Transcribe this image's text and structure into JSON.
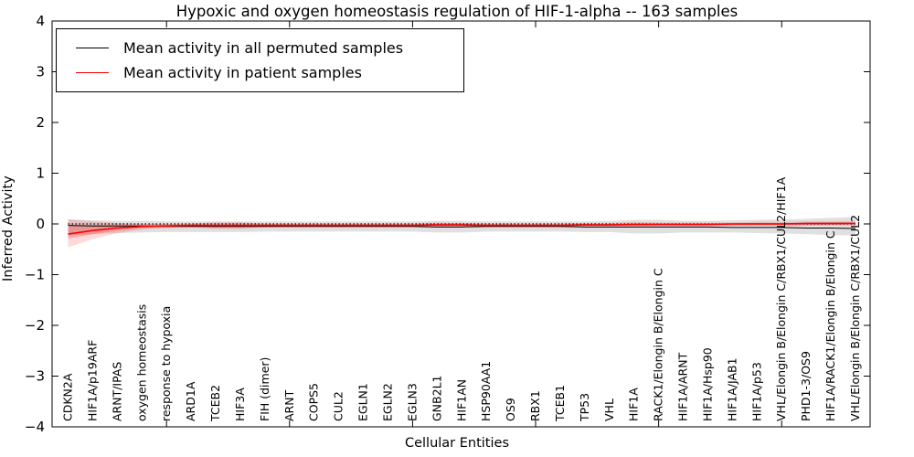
{
  "figure": {
    "title": "Hypoxic and oxygen homeostasis regulation of HIF-1-alpha -- 163 samples",
    "xlabel": "Cellular Entities",
    "ylabel": "Inferred Activity"
  },
  "chart_data": {
    "type": "line",
    "title": "Hypoxic and oxygen homeostasis regulation of HIF-1-alpha -- 163 samples",
    "xlabel": "Cellular Entities",
    "ylabel": "Inferred Activity",
    "ylim": [
      -4,
      4
    ],
    "yticks": [
      -4,
      -3,
      -2,
      -1,
      0,
      1,
      2,
      3,
      4
    ],
    "xtick_positions": [
      5,
      10,
      15,
      20,
      25,
      30
    ],
    "grid": false,
    "legend_position": "upper left",
    "zero_line_style": "dotted",
    "categories": [
      "CDKN2A",
      "HIF1A/p19ARF",
      "ARNT/IPAS",
      "oxygen homeostasis",
      "response to hypoxia",
      "ARD1A",
      "TCEB2",
      "HIF3A",
      "FIH (dimer)",
      "ARNT",
      "COPS5",
      "CUL2",
      "EGLN1",
      "EGLN2",
      "EGLN3",
      "GNB2L1",
      "HIF1AN",
      "HSP90AA1",
      "OS9",
      "RBX1",
      "TCEB1",
      "TP53",
      "VHL",
      "HIF1A",
      "RACK1/Elongin B/Elongin C",
      "HIF1A/ARNT",
      "HIF1A/Hsp90",
      "HIF1A/JAB1",
      "HIF1A/p53",
      "VHL/Elongin B/Elongin C/RBX1/CUL2/HIF1A",
      "PHD1-3/OS9",
      "HIF1A/RACK1/Elongin B/Elongin C",
      "VHL/Elongin B/Elongin C/RBX1/CUL2"
    ],
    "series": [
      {
        "name": "Mean activity in all permuted samples",
        "color": "#000000",
        "band_color": "rgba(0,0,0,0.12)",
        "values": [
          -0.03,
          -0.04,
          -0.04,
          -0.04,
          -0.05,
          -0.05,
          -0.05,
          -0.05,
          -0.05,
          -0.05,
          -0.05,
          -0.05,
          -0.05,
          -0.05,
          -0.05,
          -0.06,
          -0.06,
          -0.05,
          -0.05,
          -0.05,
          -0.05,
          -0.06,
          -0.06,
          -0.06,
          -0.06,
          -0.06,
          -0.06,
          -0.07,
          -0.07,
          -0.07,
          -0.08,
          -0.08,
          -0.09
        ],
        "band_upper": [
          0.09,
          0.07,
          0.06,
          0.06,
          0.05,
          0.05,
          0.05,
          0.05,
          0.05,
          0.05,
          0.05,
          0.05,
          0.05,
          0.05,
          0.05,
          0.06,
          0.06,
          0.05,
          0.05,
          0.05,
          0.05,
          0.05,
          0.06,
          0.08,
          0.08,
          0.06,
          0.06,
          0.07,
          0.08,
          0.09,
          0.1,
          0.12,
          0.14
        ],
        "band_lower": [
          -0.23,
          -0.2,
          -0.18,
          -0.17,
          -0.16,
          -0.16,
          -0.16,
          -0.16,
          -0.15,
          -0.15,
          -0.15,
          -0.15,
          -0.15,
          -0.15,
          -0.15,
          -0.17,
          -0.17,
          -0.15,
          -0.15,
          -0.15,
          -0.15,
          -0.16,
          -0.16,
          -0.19,
          -0.19,
          -0.17,
          -0.17,
          -0.17,
          -0.18,
          -0.19,
          -0.2,
          -0.22,
          -0.23
        ]
      },
      {
        "name": "Mean activity in patient samples",
        "color": "#ff0000",
        "band_color": "rgba(255,0,0,0.15)",
        "inner_band_color": "rgba(255,0,0,0.22)",
        "values": [
          -0.2,
          -0.13,
          -0.08,
          -0.05,
          -0.04,
          -0.03,
          -0.03,
          -0.03,
          -0.03,
          -0.03,
          -0.03,
          -0.03,
          -0.03,
          -0.03,
          -0.03,
          -0.02,
          -0.02,
          -0.03,
          -0.03,
          -0.03,
          -0.03,
          -0.02,
          -0.02,
          -0.01,
          -0.01,
          -0.01,
          -0.01,
          0.0,
          0.0,
          0.0,
          0.01,
          0.01,
          0.01
        ],
        "band_upper": [
          0.09,
          0.05,
          0.02,
          0.0,
          0.0,
          0.01,
          0.03,
          0.03,
          0.01,
          0.01,
          0.01,
          0.01,
          0.01,
          0.01,
          0.01,
          0.03,
          0.02,
          0.01,
          0.01,
          0.01,
          0.01,
          0.02,
          0.02,
          0.04,
          0.03,
          0.03,
          0.03,
          0.03,
          0.04,
          0.04,
          0.05,
          0.05,
          0.06
        ],
        "band_lower": [
          -0.46,
          -0.3,
          -0.18,
          -0.11,
          -0.08,
          -0.07,
          -0.1,
          -0.1,
          -0.07,
          -0.06,
          -0.06,
          -0.06,
          -0.06,
          -0.06,
          -0.06,
          -0.07,
          -0.06,
          -0.06,
          -0.06,
          -0.06,
          -0.06,
          -0.06,
          -0.06,
          -0.06,
          -0.05,
          -0.05,
          -0.05,
          -0.04,
          -0.04,
          -0.04,
          -0.04,
          -0.03,
          -0.03
        ],
        "inner_band_upper": [
          -0.03,
          -0.02,
          -0.01,
          -0.01,
          -0.01,
          0.0,
          0.01,
          0.01,
          0.0,
          0.0,
          0.0,
          0.0,
          0.0,
          0.0,
          0.0,
          0.01,
          0.01,
          0.0,
          0.0,
          0.0,
          0.0,
          0.0,
          0.0,
          0.01,
          0.01,
          0.01,
          0.01,
          0.01,
          0.02,
          0.02,
          0.02,
          0.03,
          0.03
        ],
        "inner_band_lower": [
          -0.29,
          -0.2,
          -0.13,
          -0.08,
          -0.06,
          -0.05,
          -0.07,
          -0.07,
          -0.05,
          -0.05,
          -0.05,
          -0.05,
          -0.05,
          -0.05,
          -0.05,
          -0.05,
          -0.05,
          -0.05,
          -0.05,
          -0.05,
          -0.05,
          -0.04,
          -0.04,
          -0.04,
          -0.03,
          -0.03,
          -0.03,
          -0.03,
          -0.02,
          -0.02,
          -0.02,
          -0.02,
          -0.01
        ]
      }
    ]
  }
}
